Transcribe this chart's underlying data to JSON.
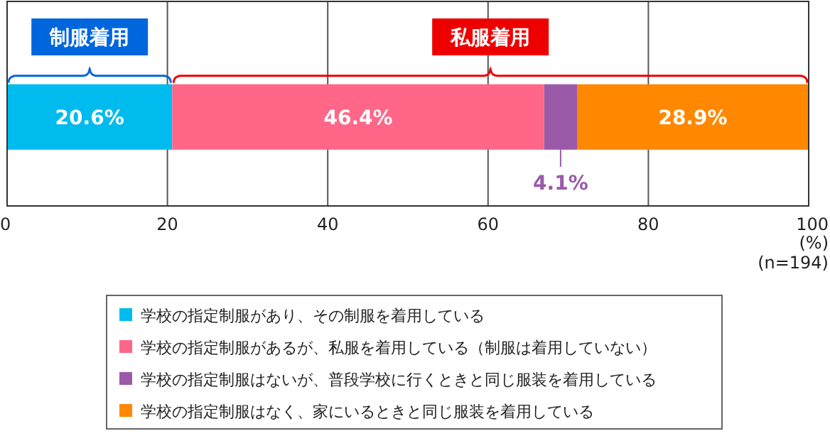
{
  "chart_data": {
    "type": "bar",
    "orientation": "horizontal",
    "stacked": true,
    "categories": [
      null
    ],
    "series": [
      {
        "name": "学校の指定制服があり、その制服を着用している",
        "color": "#00bbee",
        "values": [
          20.6
        ],
        "value_labels": [
          "20.6%"
        ]
      },
      {
        "name": "学校の指定制服があるが、私服を着用している（制服は着用していない）",
        "color": "#ff6688",
        "values": [
          46.4
        ],
        "value_labels": [
          "46.4%"
        ]
      },
      {
        "name": "学校の指定制服はないが、普段学校に行くときと同じ服装を着用している",
        "color": "#9a5aa8",
        "values": [
          4.1
        ],
        "value_labels": [
          "4.1%"
        ]
      },
      {
        "name": "学校の指定制服はなく、家にいるときと同じ服装を着用している",
        "color": "#ff8800",
        "values": [
          28.9
        ],
        "value_labels": [
          "28.9%"
        ]
      }
    ],
    "xlim": [
      0,
      100
    ],
    "xticks": [
      0,
      20,
      40,
      60,
      80,
      100
    ],
    "xlabel": "(%)",
    "grid": "x",
    "legend": "bottom",
    "annotations": [
      "制服着用",
      "私服着用",
      "(n=194)"
    ]
  }
}
